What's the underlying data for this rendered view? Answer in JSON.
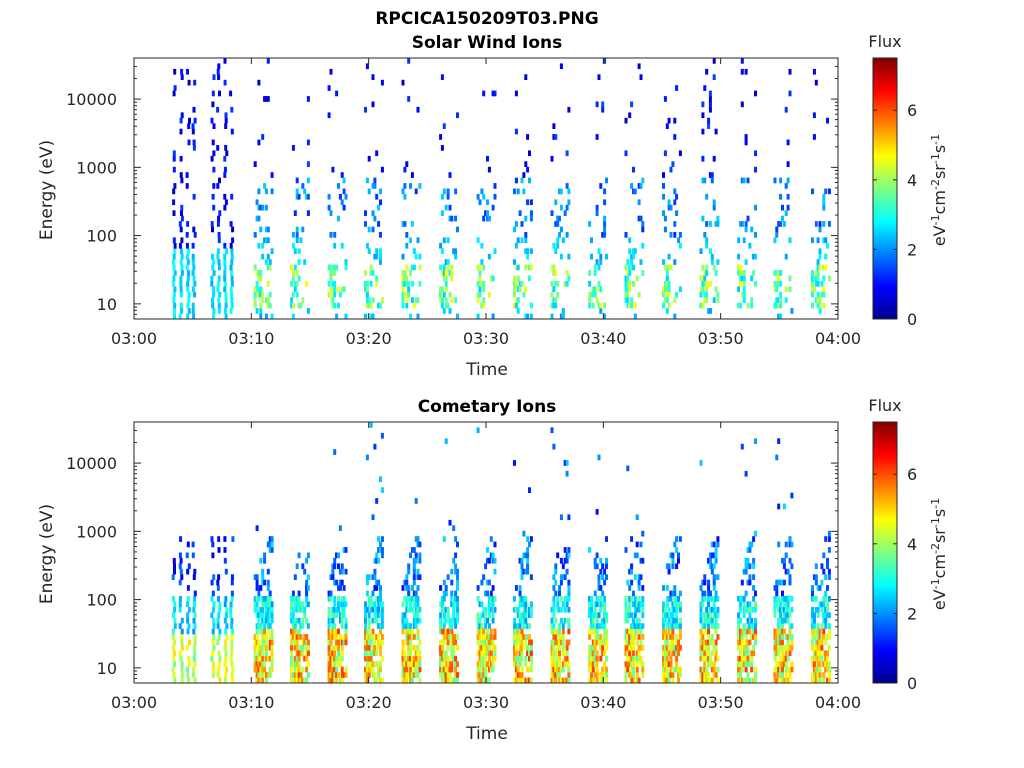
{
  "figure": {
    "title": "RPCICA150209T03.PNG"
  },
  "chart_data": [
    {
      "type": "heatmap",
      "title": "Solar Wind Ions",
      "xlabel": "Time",
      "ylabel": "Energy (eV)",
      "x_ticks": [
        "03:00",
        "03:10",
        "03:20",
        "03:30",
        "03:40",
        "03:50",
        "04:00"
      ],
      "y_ticks": [
        "10",
        "100",
        "1000",
        "10000"
      ],
      "y_tick_values": [
        10,
        100,
        1000,
        10000
      ],
      "y_scale": "log",
      "ylim": [
        6,
        40000
      ],
      "xlim_minutes": [
        0,
        60
      ],
      "colorbar": {
        "title": "Flux",
        "label": "eV-1cm-2sr-1s-1",
        "ticks": [
          0,
          2,
          4,
          6
        ],
        "range": [
          0,
          7.5
        ],
        "colormap": "jet"
      },
      "sweep_start_minutes": [
        10.2,
        13.3,
        16.5,
        19.6,
        22.8,
        26.0,
        29.2,
        32.3,
        35.5,
        38.7,
        41.8,
        45.0,
        48.2,
        51.4,
        54.5,
        57.7
      ],
      "early_burst_minutes": [
        3.2,
        3.8,
        4.4,
        4.9,
        6.5,
        7.0,
        7.6,
        8.1
      ],
      "density": "sparse"
    },
    {
      "type": "heatmap",
      "title": "Cometary Ions",
      "xlabel": "Time",
      "ylabel": "Energy (eV)",
      "x_ticks": [
        "03:00",
        "03:10",
        "03:20",
        "03:30",
        "03:40",
        "03:50",
        "04:00"
      ],
      "y_ticks": [
        "10",
        "100",
        "1000",
        "10000"
      ],
      "y_tick_values": [
        10,
        100,
        1000,
        10000
      ],
      "y_scale": "log",
      "ylim": [
        6,
        40000
      ],
      "xlim_minutes": [
        0,
        60
      ],
      "colorbar": {
        "title": "Flux",
        "label": "eV-1cm-2sr-1s-1",
        "ticks": [
          0,
          2,
          4,
          6
        ],
        "range": [
          0,
          7.5
        ],
        "colormap": "jet"
      },
      "sweep_start_minutes": [
        10.2,
        13.3,
        16.5,
        19.6,
        22.8,
        26.0,
        29.2,
        32.3,
        35.5,
        38.7,
        41.8,
        45.0,
        48.2,
        51.4,
        54.5,
        57.7
      ],
      "early_burst_minutes": [
        3.2,
        3.8,
        4.4,
        4.9,
        6.5,
        7.0,
        7.6,
        8.1
      ],
      "density": "dense"
    }
  ]
}
